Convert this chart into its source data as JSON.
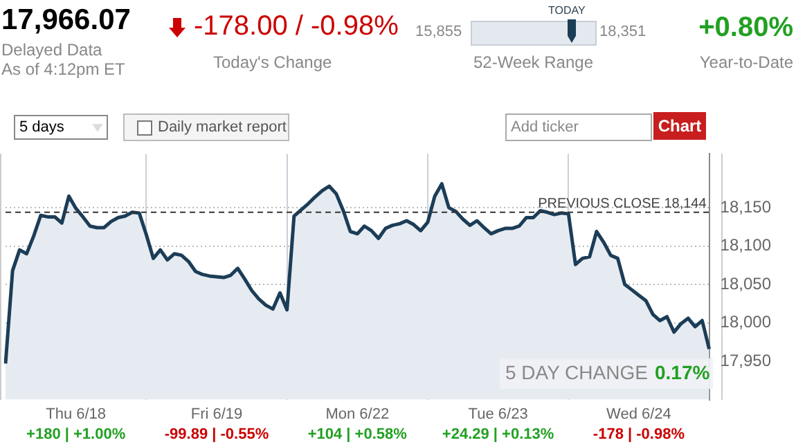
{
  "chart_data": {
    "type": "area",
    "title": "17,966.07",
    "categories": [
      null,
      null,
      null,
      null,
      null,
      null,
      null,
      null,
      null,
      null,
      "Thu 6/18",
      null,
      null,
      null,
      null,
      null,
      null,
      null,
      null,
      null,
      null,
      null,
      null,
      null,
      null,
      null,
      null,
      null,
      null,
      null,
      "Fri 6/19",
      null,
      null,
      null,
      null,
      null,
      null,
      null,
      null,
      null,
      null,
      null,
      null,
      null,
      null,
      null,
      null,
      null,
      null,
      null,
      "Mon 6/22",
      null,
      null,
      null,
      null,
      null,
      null,
      null,
      null,
      null,
      null,
      null,
      null,
      null,
      null,
      null,
      null,
      null,
      null,
      null,
      "Tue 6/23",
      null,
      null,
      null,
      null,
      null,
      null,
      null,
      null,
      null,
      null,
      null,
      null,
      null,
      null,
      null,
      null,
      null,
      null,
      null,
      "Wed 6/24",
      null,
      null,
      null,
      null,
      null,
      null,
      null,
      null,
      null,
      null
    ],
    "series": [
      {
        "color": "#1c3d57",
        "values": [
          17947,
          18068,
          18095,
          18090,
          18113,
          18140,
          18138,
          18138,
          18130,
          18165,
          18149,
          18138,
          18126,
          18124,
          18124,
          18132,
          18137,
          18139,
          18144,
          18143,
          18115,
          18084,
          18095,
          18082,
          18090,
          18088,
          18080,
          18067,
          18063,
          18061,
          18060,
          18059,
          18062,
          18071,
          18057,
          18042,
          18031,
          18023,
          18018,
          18039,
          18017,
          18139,
          18147,
          18155,
          18164,
          18172,
          18178,
          18168,
          18146,
          18119,
          18116,
          18126,
          18120,
          18110,
          18123,
          18127,
          18129,
          18133,
          18128,
          18120,
          18131,
          18165,
          18181,
          18150,
          18145,
          18135,
          18127,
          18133,
          18124,
          18116,
          18120,
          18123,
          18123,
          18126,
          18137,
          18137,
          18146,
          18144,
          18141,
          18143,
          18142,
          18076,
          18084,
          18086,
          18119,
          18105,
          18088,
          18084,
          18050,
          18043,
          18036,
          18029,
          18011,
          18003,
          18008,
          17988,
          17999,
          18006,
          17995,
          18003,
          17966
        ]
      }
    ],
    "ylim": [
      17900,
      18220
    ],
    "yticks": [
      {
        "value": 17950,
        "label": "17,950"
      },
      {
        "value": 18000,
        "label": "18,000"
      },
      {
        "value": 18050,
        "label": "18,050"
      },
      {
        "value": 18100,
        "label": "18,100"
      },
      {
        "value": 18150,
        "label": "18,150"
      }
    ],
    "grid": true,
    "legend": false,
    "marker": "none",
    "ref_lines": [
      {
        "axis": "y",
        "value": 18144,
        "label": "PREVIOUS CLOSE 18,144",
        "line_style": "dashed"
      }
    ],
    "annotations": [
      "Delayed Data",
      "As of 4:12pm ET",
      "-178.00 / -0.98%",
      "Today's Change",
      "15,855",
      "TODAY",
      "18,351",
      "52-Week Range",
      "+0.80%",
      "Year-to-Date",
      "5 days",
      "Daily market report",
      "Add ticker",
      "Chart",
      "5 DAY CHANGE",
      "0.17%",
      "+180 | +1.00%",
      "-99.89 | -0.55%",
      "+104 | +0.58%",
      "+24.29 | +0.13%",
      "-178 | -0.98%"
    ]
  }
}
